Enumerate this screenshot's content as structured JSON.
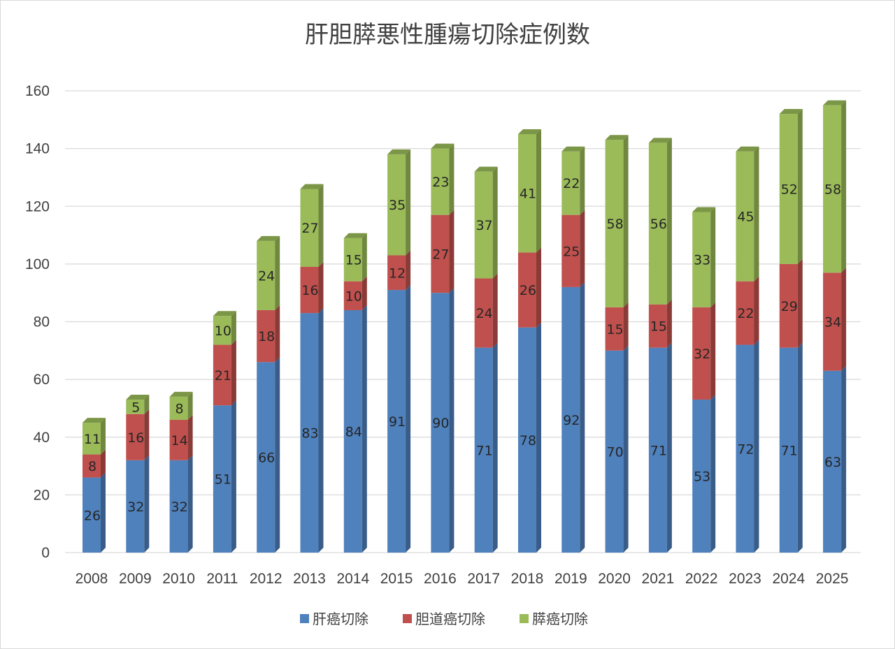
{
  "chart_data": {
    "type": "bar",
    "stacked": true,
    "title": "肝胆膵悪性腫瘍切除症例数",
    "xlabel": "",
    "ylabel": "",
    "ylim": [
      0,
      160
    ],
    "yticks": [
      0,
      20,
      40,
      60,
      80,
      100,
      120,
      140,
      160
    ],
    "grid": true,
    "legend_position": "bottom",
    "categories": [
      "2008",
      "2009",
      "2010",
      "2011",
      "2012",
      "2013",
      "2014",
      "2015",
      "2016",
      "2017",
      "2018",
      "2019",
      "2020",
      "2021",
      "2022",
      "2023",
      "2024",
      "2025"
    ],
    "series": [
      {
        "name": "肝癌切除",
        "color": "#4f81bd",
        "values": [
          26,
          32,
          32,
          51,
          66,
          83,
          84,
          91,
          90,
          71,
          78,
          92,
          70,
          71,
          53,
          72,
          71,
          63
        ]
      },
      {
        "name": "胆道癌切除",
        "color": "#c0504d",
        "values": [
          8,
          16,
          14,
          21,
          18,
          16,
          10,
          12,
          27,
          24,
          26,
          25,
          15,
          15,
          32,
          22,
          29,
          34
        ]
      },
      {
        "name": "膵癌切除",
        "color": "#9bbb59",
        "values": [
          11,
          5,
          8,
          10,
          24,
          27,
          15,
          35,
          23,
          37,
          41,
          22,
          58,
          56,
          33,
          45,
          52,
          58
        ]
      }
    ]
  }
}
